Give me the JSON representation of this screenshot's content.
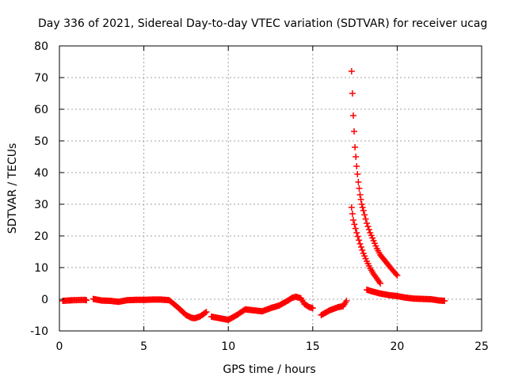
{
  "chart_data": {
    "type": "scatter",
    "title": "Day 336 of 2021, Sidereal Day-to-day VTEC variation (SDTVAR) for receiver ucag",
    "xlabel": "GPS time / hours",
    "ylabel": "SDTVAR / TECUs",
    "xlim": [
      0,
      25
    ],
    "ylim": [
      -10,
      80
    ],
    "xticks": [
      0,
      5,
      10,
      15,
      20,
      25
    ],
    "yticks": [
      -10,
      0,
      10,
      20,
      30,
      40,
      50,
      60,
      70,
      80
    ],
    "grid": true,
    "marker": "+",
    "marker_color": "#ff0000",
    "series": [
      {
        "name": "SDTVAR",
        "segments": [
          {
            "x": [
              0.2,
              0.8,
              1.5,
              1.6
            ],
            "y": [
              -0.5,
              -0.3,
              -0.2,
              -0.3
            ]
          },
          {
            "x": [
              2.0,
              2.5,
              3.0,
              3.5,
              4.0,
              4.5,
              5.0,
              5.5,
              6.0,
              6.5,
              7.0,
              7.5,
              7.8,
              8.0,
              8.3,
              8.5,
              8.7
            ],
            "y": [
              0.1,
              -0.4,
              -0.5,
              -0.8,
              -0.3,
              -0.2,
              -0.2,
              -0.1,
              -0.1,
              -0.3,
              -2.5,
              -5.0,
              -5.8,
              -6.0,
              -5.5,
              -4.8,
              -4.0
            ]
          },
          {
            "x": [
              9.0,
              9.5,
              10.0,
              10.5,
              11.0,
              11.5,
              12.0,
              12.5,
              13.0,
              13.5,
              13.8,
              14.0,
              14.3,
              14.5,
              14.8,
              15.0
            ],
            "y": [
              -5.5,
              -6.0,
              -6.5,
              -5.0,
              -3.2,
              -3.5,
              -3.8,
              -2.8,
              -2.0,
              -0.5,
              0.5,
              0.8,
              0.3,
              -1.5,
              -2.5,
              -2.8
            ]
          },
          {
            "x": [
              15.5,
              16.0,
              16.5,
              16.8,
              17.0
            ],
            "y": [
              -5.0,
              -3.5,
              -2.5,
              -2.2,
              -0.5
            ]
          },
          {
            "x": [
              17.3,
              17.4,
              17.5,
              17.6,
              17.7,
              17.8,
              17.9,
              18.0,
              18.2,
              18.4,
              18.6,
              18.8,
              19.0,
              19.3,
              19.6,
              20.0
            ],
            "y": [
              72.0,
              58.0,
              48.0,
              42.0,
              37.0,
              33.0,
              30.0,
              28.0,
              24.0,
              21.0,
              18.5,
              16.0,
              14.0,
              12.0,
              10.0,
              7.5
            ]
          },
          {
            "x": [
              17.3,
              17.4,
              17.6,
              17.8,
              18.0,
              18.2,
              18.4,
              18.6,
              18.8,
              19.0
            ],
            "y": [
              29.0,
              25.0,
              21.0,
              17.5,
              14.5,
              12.0,
              9.8,
              8.0,
              6.5,
              5.0
            ]
          },
          {
            "x": [
              18.2,
              18.5,
              19.0,
              19.5,
              20.0,
              20.5,
              21.0,
              21.5,
              22.0,
              22.5,
              22.8
            ],
            "y": [
              3.0,
              2.5,
              1.8,
              1.3,
              1.0,
              0.5,
              0.2,
              0.1,
              0.0,
              -0.4,
              -0.5
            ]
          }
        ]
      }
    ]
  }
}
